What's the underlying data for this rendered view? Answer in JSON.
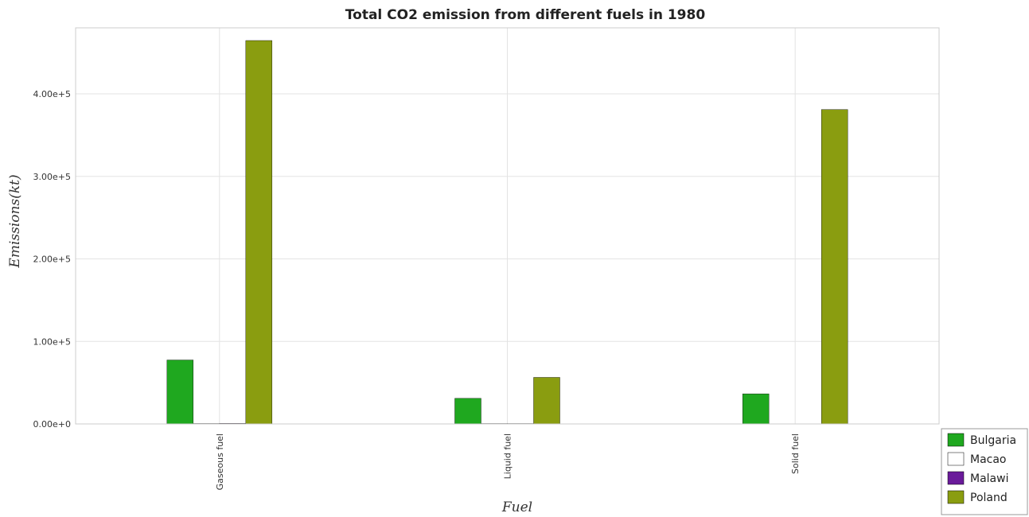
{
  "chart_data": {
    "type": "bar",
    "title": "Total CO2 emission from different fuels in 1980",
    "xlabel": "Fuel",
    "ylabel": "Emissions(kt)",
    "categories": [
      "Gaseous fuel",
      "Liquid fuel",
      "Solid fuel"
    ],
    "ylim": [
      0,
      480000
    ],
    "yticks": [
      0,
      100000,
      200000,
      300000,
      400000
    ],
    "ytick_labels": [
      "0.00e+0",
      "1.00e+5",
      "2.00e+5",
      "3.00e+5",
      "4.00e+5"
    ],
    "grid": true,
    "legend_position": "bottom-right",
    "series": [
      {
        "name": "Bulgaria",
        "color": "#1fa81f",
        "values": [
          77500,
          31000,
          36500
        ]
      },
      {
        "name": "Macao",
        "color": "#ffffff",
        "values": [
          520,
          480,
          0
        ]
      },
      {
        "name": "Malawi",
        "color": "#6a1b9a",
        "values": [
          620,
          470,
          100
        ]
      },
      {
        "name": "Poland",
        "color": "#8a9d10",
        "values": [
          464600,
          56400,
          381000
        ]
      }
    ]
  }
}
